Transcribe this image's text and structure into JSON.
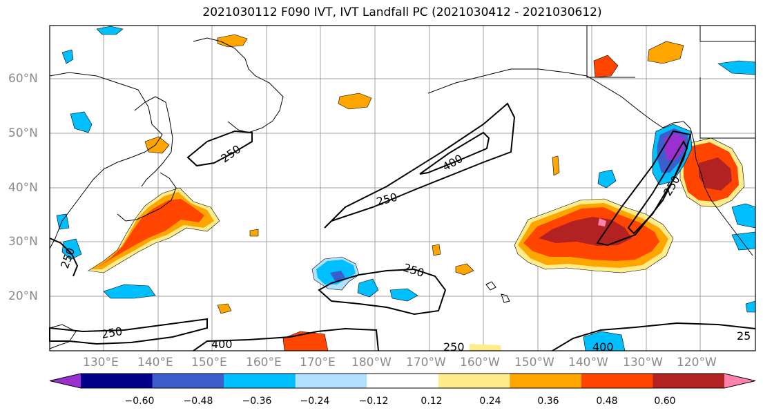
{
  "title": "2021030112 F090 IVT, IVT Landfall PC (2021030412 - 2021030612)",
  "lat_labels": [
    "60°N",
    "50°N",
    "40°N",
    "30°N",
    "20°N"
  ],
  "lon_labels": [
    "130°E",
    "140°E",
    "150°E",
    "160°E",
    "170°E",
    "180°W",
    "170°W",
    "160°W",
    "150°W",
    "140°W",
    "130°W",
    "120°W"
  ],
  "contour_labels": [
    "250",
    "250",
    "400",
    "250",
    "250",
    "250",
    "400",
    "250",
    "400",
    "25",
    "250"
  ],
  "colorbar": {
    "tick_labels": [
      "−0.60",
      "−0.48",
      "−0.36",
      "−0.24",
      "−0.12",
      "0.12",
      "0.24",
      "0.36",
      "0.48",
      "0.60"
    ],
    "colors": [
      "#9b30d0",
      "#00008b",
      "#3a5fcd",
      "#00bfff",
      "#b0e2ff",
      "#ffffff",
      "#ffec8b",
      "#ffa500",
      "#ff4500",
      "#b22222",
      "#ff82ab"
    ]
  },
  "colors": {
    "strong_negative": "#9b30d0",
    "negative": "#00bfff",
    "positive": "#ffa500",
    "strong_positive": "#b22222",
    "gridline": "#a0a0a0",
    "coastline": "#000000"
  }
}
